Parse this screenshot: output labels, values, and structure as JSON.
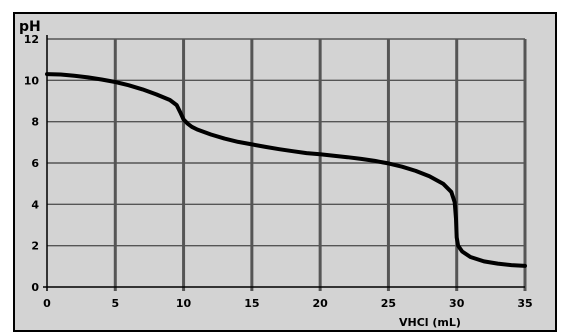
{
  "chart_data": {
    "type": "line",
    "title": "",
    "xlabel": "VHCl (mL)",
    "ylabel": "pH",
    "xlim": [
      0,
      35
    ],
    "ylim": [
      0,
      12
    ],
    "x_ticks": [
      0,
      5,
      10,
      15,
      20,
      25,
      30,
      35
    ],
    "y_ticks": [
      0,
      2,
      4,
      6,
      8,
      10,
      12
    ],
    "grid": true,
    "colors": {
      "background": "#d3d3d3",
      "grid": "#555555",
      "curve": "#000000",
      "frame": "#000000"
    },
    "series": [
      {
        "x": [
          0,
          1,
          2,
          3,
          4,
          5,
          6,
          7,
          8,
          9,
          9.5,
          9.8,
          10,
          10.3,
          10.6,
          11,
          12,
          13,
          14,
          15,
          16,
          17,
          18,
          19,
          20,
          21,
          22,
          23,
          24,
          25,
          26,
          27,
          28,
          29,
          29.6,
          29.85,
          29.95,
          30,
          30.1,
          30.4,
          31,
          32,
          33,
          34,
          35
        ],
        "y": [
          10.3,
          10.28,
          10.22,
          10.14,
          10.04,
          9.92,
          9.76,
          9.56,
          9.32,
          9.05,
          8.8,
          8.4,
          8.1,
          7.9,
          7.75,
          7.62,
          7.38,
          7.18,
          7.02,
          6.9,
          6.78,
          6.67,
          6.57,
          6.48,
          6.42,
          6.35,
          6.28,
          6.2,
          6.1,
          5.98,
          5.82,
          5.62,
          5.36,
          5.0,
          4.6,
          4.1,
          3.3,
          2.4,
          2.0,
          1.72,
          1.45,
          1.24,
          1.13,
          1.06,
          1.02
        ]
      }
    ]
  }
}
